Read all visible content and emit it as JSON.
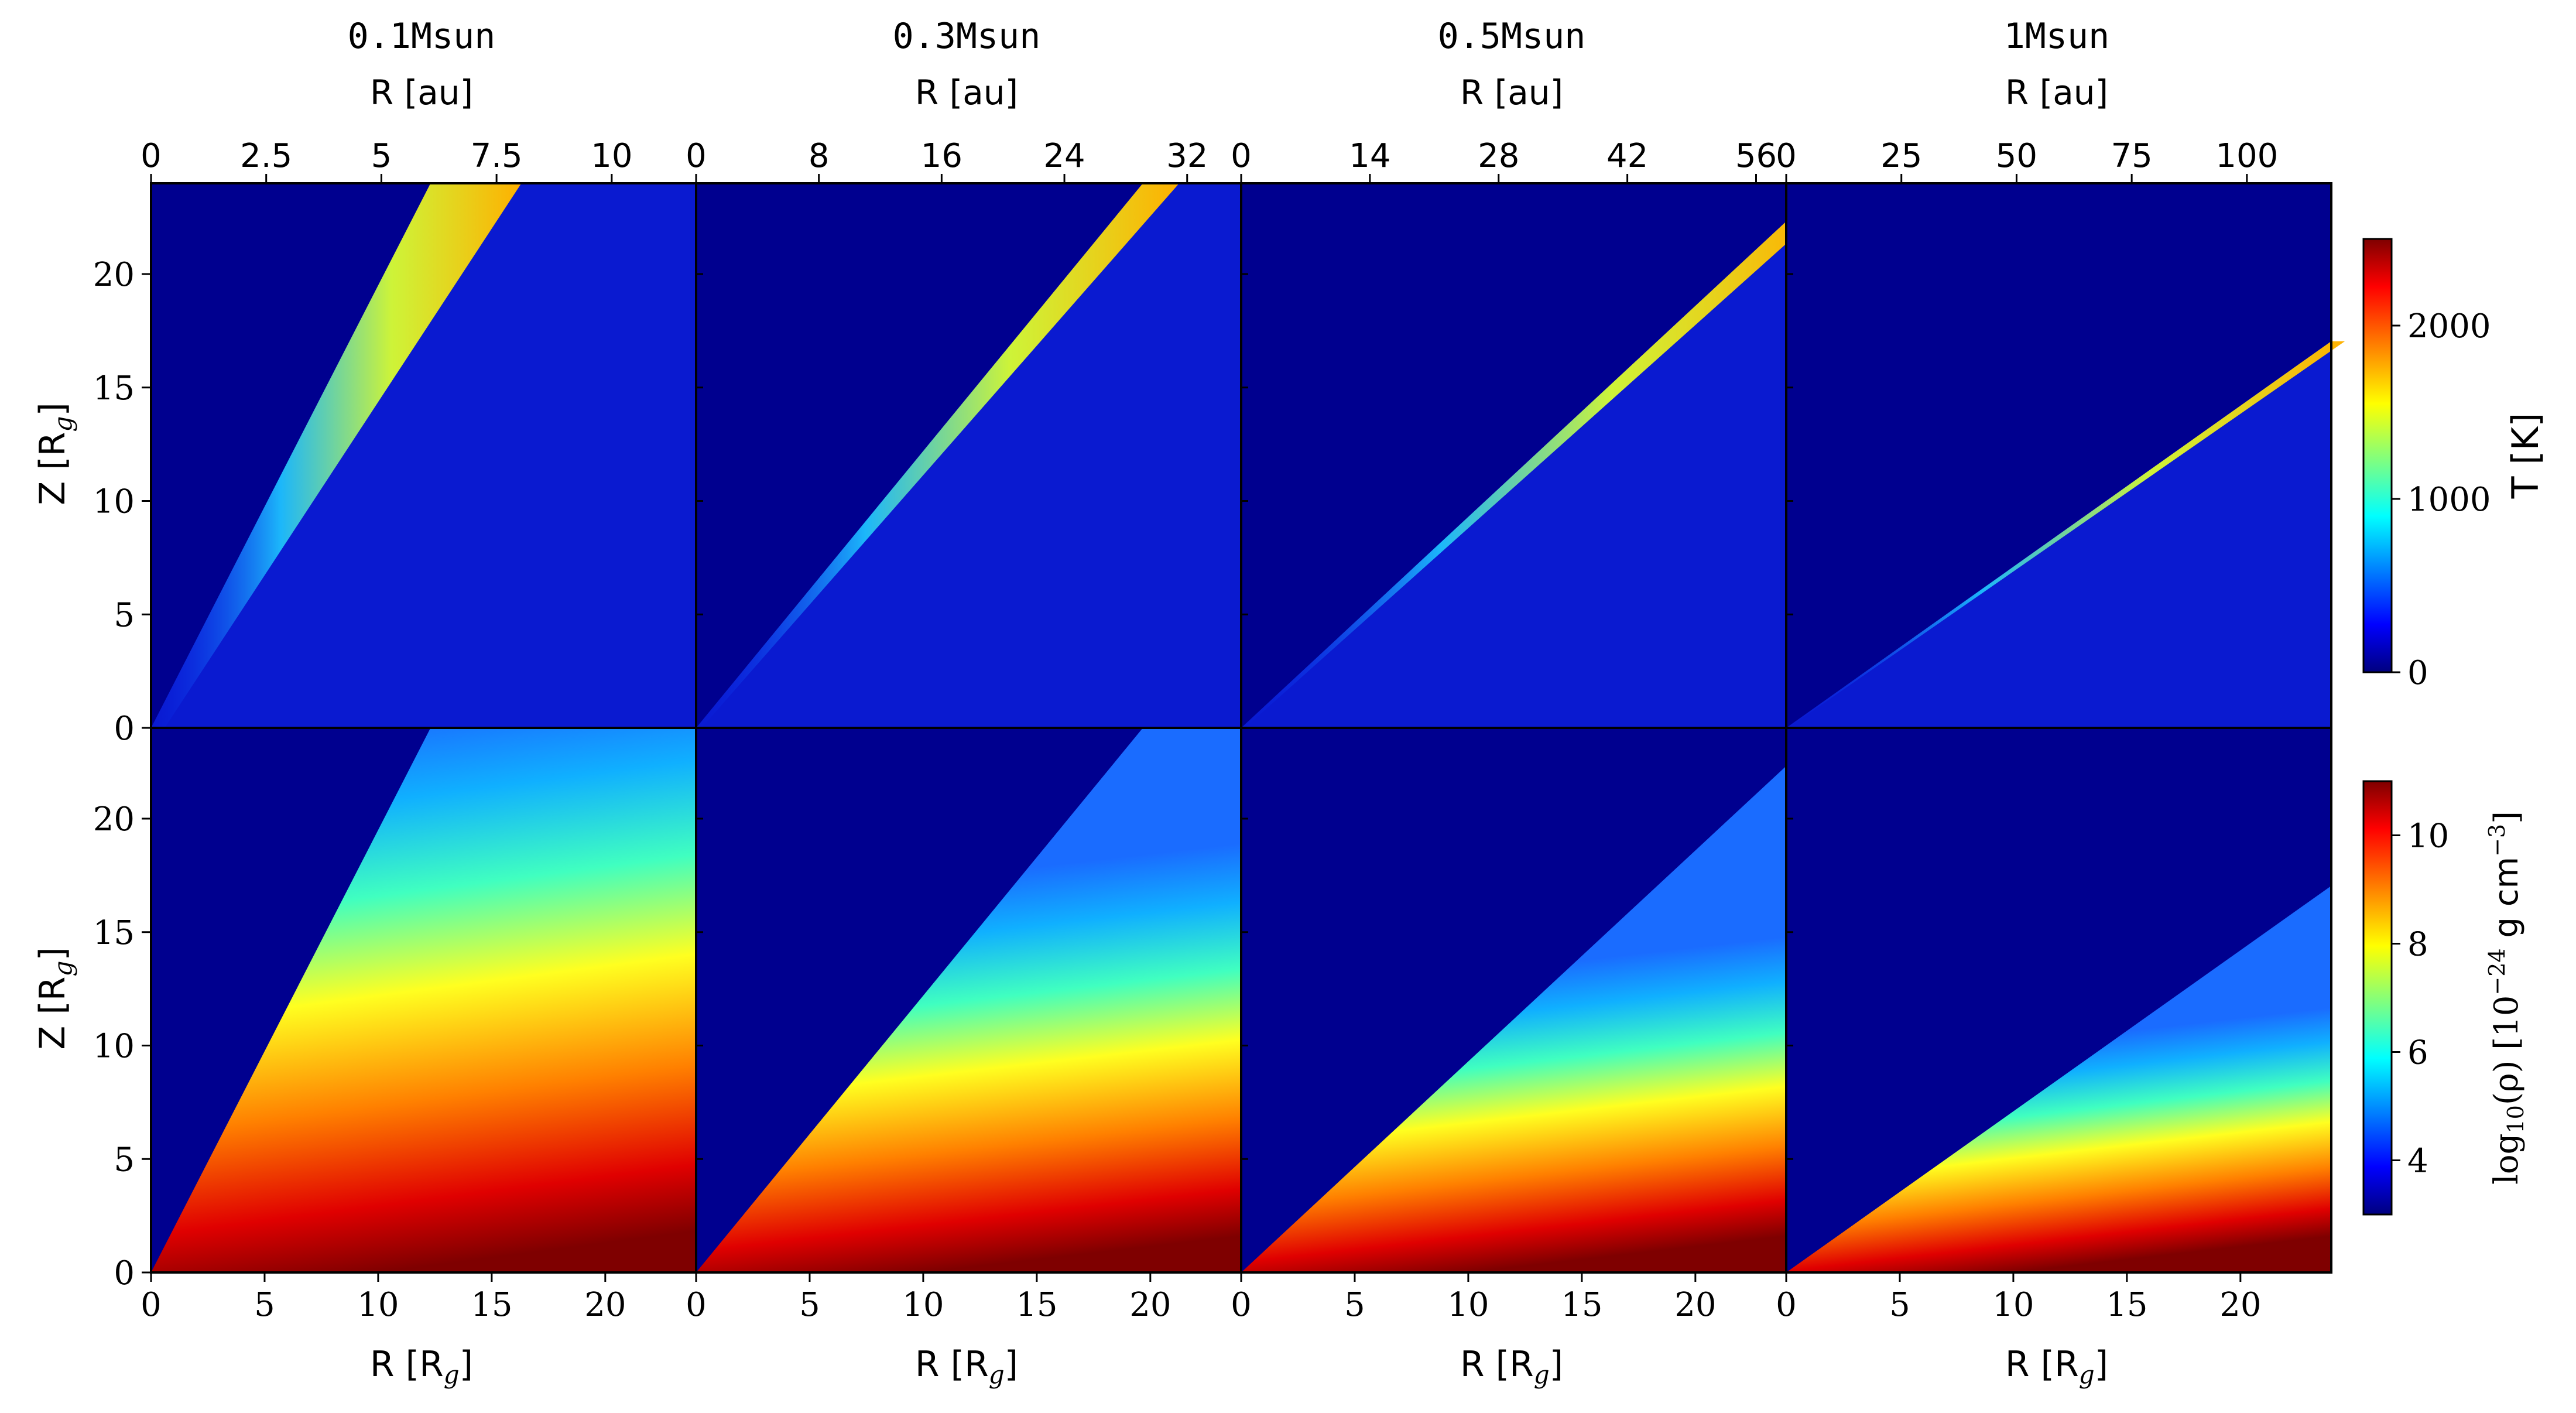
{
  "chart_data": {
    "type": "heatmap",
    "panel_titles": [
      "0.1Msun",
      "0.3Msun",
      "0.5Msun",
      "1Msun"
    ],
    "top_xlabel": "R [au]",
    "bottom_xlabel_base": "R [R",
    "bottom_xlabel_sub": "g",
    "bottom_xlabel_end": "]",
    "ylabel_base": "Z [R",
    "ylabel_sub": "g",
    "ylabel_end": "]",
    "rg_range": [
      0,
      24
    ],
    "z_range": [
      0,
      24
    ],
    "rg_ticks": [
      "0",
      "5",
      "10",
      "15",
      "20"
    ],
    "z_ticks": [
      "0",
      "5",
      "10",
      "15",
      "20"
    ],
    "au_ticks": [
      [
        "0",
        "2.5",
        "5",
        "7.5",
        "10"
      ],
      [
        "0",
        "8",
        "16",
        "24",
        "32"
      ],
      [
        "0",
        "14",
        "28",
        "42",
        "56"
      ],
      [
        "0",
        "25",
        "50",
        "75",
        "100"
      ]
    ],
    "au_per_rg": [
      0.493,
      1.48,
      2.47,
      4.93
    ],
    "disc_surface_slope_z_over_r": [
      1.95,
      1.22,
      0.93,
      0.71
    ],
    "colorbar_temperature": {
      "label": "T [K]",
      "range": [
        0,
        2500
      ],
      "ticks": [
        "0",
        "1000",
        "2000"
      ],
      "colormap": "jet"
    },
    "colorbar_density": {
      "label_base": "log",
      "label_sub": "10",
      "label_mid": "(ρ) [10",
      "label_sup": "−24",
      "label_unit": " g cm",
      "label_sup2": "−3",
      "label_end": "]",
      "range": [
        3,
        11
      ],
      "ticks": [
        "4",
        "6",
        "8",
        "10"
      ],
      "colormap": "jet"
    }
  }
}
